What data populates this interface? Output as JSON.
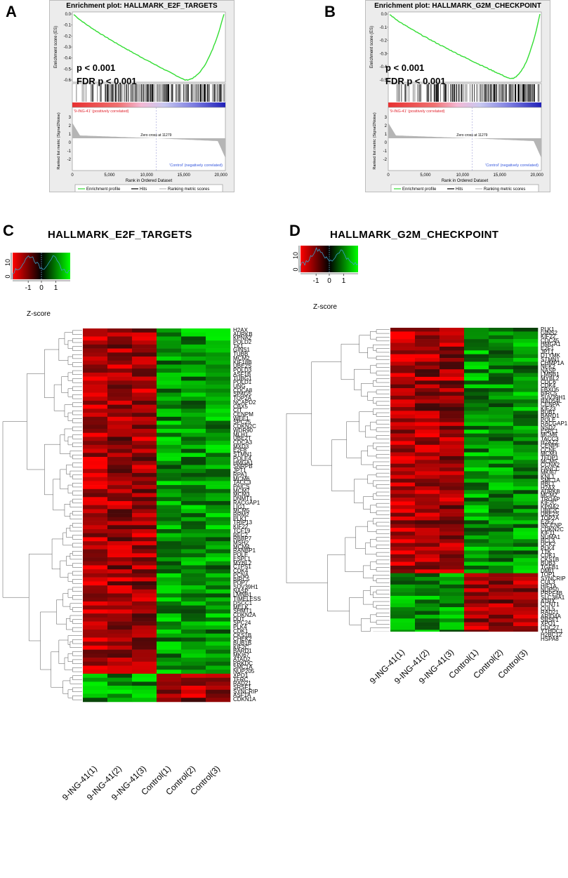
{
  "panels": {
    "A": {
      "letter": "A",
      "title": "Enrichment plot: HALLMARK_E2F_TARGETS",
      "p": "p < 0.001",
      "fdr": "FDR p < 0.001",
      "es_ylabel": "Enrichment score (ES)",
      "es_ticks": [
        "0.0",
        "-0.1",
        "-0.2",
        "-0.3",
        "-0.4",
        "-0.5",
        "-0.6"
      ],
      "rank_ylabel": "Ranked list metric (Signal2Noise)",
      "rank_ticks": [
        "3",
        "2",
        "1",
        "0",
        "-1",
        "-2"
      ],
      "pos_label": "'9-ING-41' (positively correlated)",
      "neg_label": "'Control' (negatively correlated)",
      "zero_cross": "Zero cross at 11279",
      "x_ticks": [
        "0",
        "5,000",
        "10,000",
        "15,000",
        "20,000"
      ],
      "xlabel": "Rank in Ordered Dataset",
      "legend": [
        "Enrichment profile",
        "Hits",
        "Ranking metric scores"
      ]
    },
    "B": {
      "letter": "B",
      "title": "Enrichment plot: HALLMARK_G2M_CHECKPOINT",
      "p": "p < 0.001",
      "fdr": "FDR p < 0.001",
      "es_ylabel": "Enrichment score (ES)",
      "es_ticks": [
        "0.0",
        "-0.1",
        "-0.2",
        "-0.3",
        "-0.4",
        "-0.5"
      ],
      "rank_ylabel": "Ranked list metric (Signal2Noise)",
      "rank_ticks": [
        "3",
        "2",
        "1",
        "0",
        "-1",
        "-2"
      ],
      "pos_label": "'9-ING-41' (positively correlated)",
      "neg_label": "'Control' (negatively correlated)",
      "zero_cross": "Zero cross at 11279",
      "x_ticks": [
        "0",
        "5,000",
        "10,000",
        "15,000",
        "20,000"
      ],
      "xlabel": "Rank in Ordered Dataset",
      "legend": [
        "Enrichment profile",
        "Hits",
        "Ranking metric scores"
      ]
    },
    "C": {
      "letter": "C",
      "title": "HALLMARK_E2F_TARGETS",
      "zlabel": "Z-score",
      "z_ticks": [
        "-1",
        "0",
        "1"
      ],
      "hist_ticks": [
        "10",
        "0"
      ],
      "columns": [
        "9-ING-41(1)",
        "9-ING-41(2)",
        "9-ING-41(3)",
        "Control(1)",
        "Control(2)",
        "Control(3)"
      ],
      "genes": [
        "H2AX",
        "AURKB",
        "KPNA2",
        "POLD2",
        "TK1",
        "GINS1",
        "TUBB",
        "MCM2",
        "KIF18B",
        "UBE2S",
        "POLD3",
        "ASF1B",
        "TUBG1",
        "POLD1",
        "UNG",
        "CDCA8",
        "SPAG5",
        "TOP2A",
        "NCAPD2",
        "CBX5",
        "CIT",
        "CENPM",
        "WEE1",
        "SPC25",
        "CDKN2C",
        "WDR90",
        "MLH1",
        "UBE2T",
        "CDCA3",
        "MXD3",
        "E2F8",
        "STMN1",
        "POLE4",
        "HMGA1",
        "SNRPB",
        "JPT1",
        "RPA1",
        "MCM6",
        "TACC3",
        "PAICS",
        "MCM7",
        "MCM3",
        "DNMT1",
        "RACGAP1",
        "LIG1",
        "MCM5",
        "RRM2",
        "PLK1",
        "TRIP13",
        "KIF22",
        "TCF19",
        "RFC2",
        "RBBP7",
        "MSH2",
        "MCM4",
        "RANBP1",
        "POLE",
        "ESPL1",
        "MYBL2",
        "CTPS1",
        "CDK4",
        "PCNA",
        "BIRC5",
        "POP7",
        "SUV39H1",
        "NASP",
        "LMNB1",
        "TIMELESS",
        "DSCC1",
        "MELK",
        "SHMT1",
        "CDKN2A",
        "DUT",
        "SPC24",
        "PLK4",
        "CDK1",
        "CKS1B",
        "CHEK2",
        "BUB1B",
        "KIF2C",
        "BARD1",
        "MKI67",
        "ATAD2",
        "PRKDC",
        "SMC1A",
        "NUP205",
        "XPO1",
        "TFRC",
        "RAD21",
        "SRSF1",
        "SYNCRIP",
        "ASF1A",
        "CDKN1A"
      ],
      "n_down": 7
    },
    "D": {
      "letter": "D",
      "title": "HALLMARK_G2M_CHECKPOINT",
      "zlabel": "Z-score",
      "z_ticks": [
        "-1",
        "0",
        "1"
      ],
      "hist_ticks": [
        "10",
        "0"
      ],
      "columns": [
        "9-ING-41(1)",
        "9-ING-41(2)",
        "9-ING-41(3)",
        "Control(1)",
        "Control(2)",
        "Control(3)"
      ],
      "genes": [
        "PLK1",
        "GINS2",
        "KIF22",
        "CDC45",
        "HMGA1",
        "E2F1",
        "JPT1",
        "DTYMK",
        "STMN1",
        "CHMP1A",
        "NEK2",
        "NASP",
        "LMNB1",
        "MYBL2",
        "CDC6",
        "CDK4",
        "FBXO5",
        "BIRC5",
        "SUV39H1",
        "RAD54L",
        "CENPA",
        "KIF23",
        "BUB1",
        "BARD1",
        "POLE",
        "RACGAP1",
        "NSD2",
        "ESPL1",
        "MCM6",
        "TACC3",
        "H2AZ2",
        "CENPF",
        "CCNF",
        "MCM3",
        "TFDP1",
        "MCM5",
        "CCNA2",
        "FANCC",
        "MKI67",
        "KNL1",
        "SMC1A",
        "RBL1",
        "H2AX",
        "AURKB",
        "MCM2",
        "TROAP",
        "KIF2C",
        "KPNA2",
        "UBE2C",
        "UBE2S",
        "TOP2A",
        "E2F2",
        "INCENP",
        "CDKN2C",
        "KIF11",
        "NUMA1",
        "BCL3",
        "UCK2",
        "PLK4",
        "TTK",
        "CDK1",
        "CKS1B",
        "BUB3",
        "TGFB1",
        "DMD",
        "TOP1",
        "SYNCRIP",
        "CUL3",
        "HIF1A",
        "NUP50",
        "PRPF4B",
        "SLC38A1",
        "ATRX",
        "CCNT1",
        "CUL5",
        "RAD21",
        "ARID4A",
        "SRSF1",
        "XPO1",
        "CDC27",
        "YTHDC1",
        "H2BC12",
        "HSPA8"
      ],
      "n_down": 18
    }
  },
  "colors": {
    "up_red": "#e8201e",
    "down_green": "#19c819",
    "es_curve": "#33dd33",
    "hits": "#000000",
    "metric_fill": "#b5b5b5",
    "pos_text": "#e0202a",
    "neg_text": "#3355dd"
  }
}
